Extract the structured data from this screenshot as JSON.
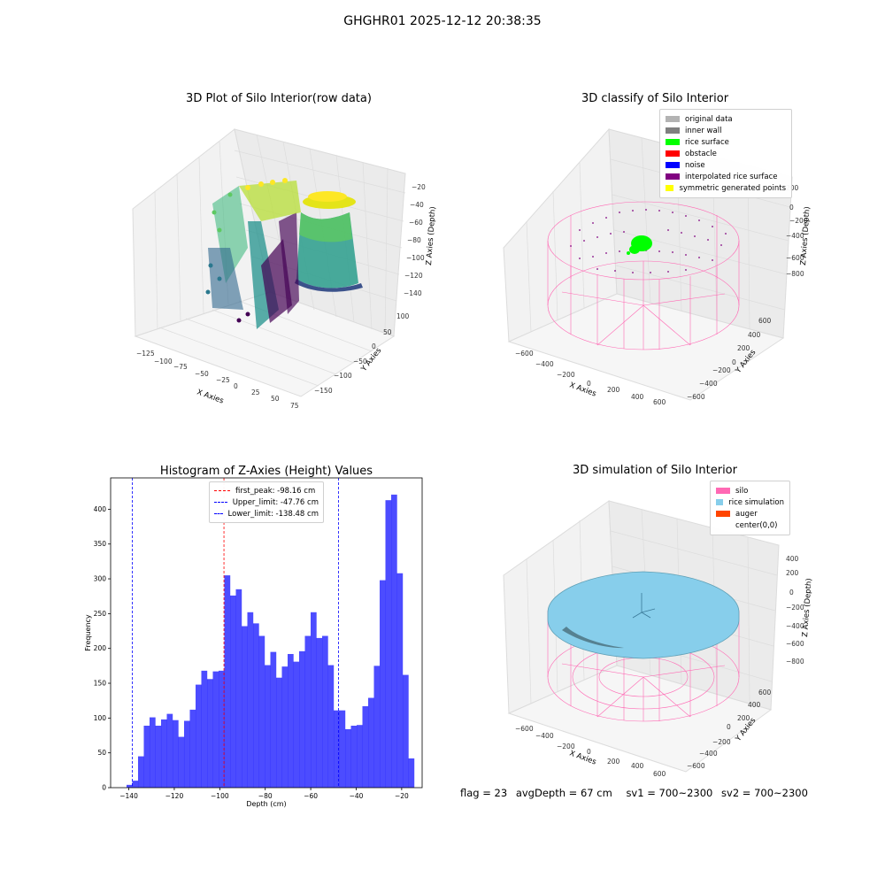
{
  "suptitle": "GHGHR01 2025-12-12 20:38:35",
  "panels": {
    "raw": {
      "title": "3D Plot of Silo Interior(row data)",
      "xlabel": "X Axies",
      "ylabel": "Y Axies",
      "zlabel": "Z Axies (Depth)",
      "xticks": [
        "−125",
        "−100",
        "−75",
        "−50",
        "−25",
        "0",
        "25",
        "50",
        "75"
      ],
      "yticks": [
        "100",
        "50",
        "0",
        "−50",
        "−100",
        "−150"
      ],
      "zticks": [
        "−20",
        "−40",
        "−60",
        "−80",
        "−100",
        "−120",
        "−140"
      ]
    },
    "classify": {
      "title": "3D classify of Silo Interior",
      "xlabel": "X Axies",
      "ylabel": "Y Axies",
      "zlabel": "Z Axies (Depth)",
      "xticks": [
        "−600",
        "−400",
        "−200",
        "0",
        "200",
        "400",
        "600"
      ],
      "yticks": [
        "600",
        "400",
        "200",
        "0",
        "−200",
        "−400",
        "−600"
      ],
      "zticks": [
        "200",
        "0",
        "−200",
        "−400",
        "−600",
        "−800"
      ],
      "legend": [
        {
          "label": "original data",
          "color": "#b3b3b3"
        },
        {
          "label": "inner wall",
          "color": "#808080"
        },
        {
          "label": "rice surface",
          "color": "#00ff00"
        },
        {
          "label": "obstacle",
          "color": "#ff0000"
        },
        {
          "label": "noise",
          "color": "#0000ff"
        },
        {
          "label": "interpolated rice surface",
          "color": "#800080"
        },
        {
          "label": "symmetric generated points",
          "color": "#ffff00"
        }
      ]
    },
    "simulation": {
      "title": "3D simulation of Silo Interior",
      "xlabel": "X Axies",
      "ylabel": "Y Axies",
      "zlabel": "Z Axies (Depth)",
      "xticks": [
        "−600",
        "−400",
        "−200",
        "0",
        "200",
        "400",
        "600"
      ],
      "yticks": [
        "600",
        "400",
        "200",
        "0",
        "−200",
        "−400",
        "−600"
      ],
      "zticks": [
        "400",
        "200",
        "0",
        "−200",
        "−400",
        "−600",
        "−800"
      ],
      "legend": [
        {
          "label": "silo",
          "color": "#ff69b4"
        },
        {
          "label": "rice simulation",
          "color": "#87ceeb"
        },
        {
          "label": "auger",
          "color": "#ff4500"
        },
        {
          "label": "center(0,0)",
          "color": "#ffffff"
        }
      ]
    }
  },
  "status": {
    "flag": "flag = 23",
    "avg": "avgDepth = 67 cm",
    "sv1": "sv1 = 700~2300",
    "sv2": "sv2 = 700~2300"
  },
  "chart_data": {
    "type": "bar",
    "title": "Histogram of Z-Axies (Height) Values",
    "xlabel": "Depth (cm)",
    "ylabel": "Frequency",
    "xlim": [
      -148,
      -11
    ],
    "ylim": [
      0,
      445
    ],
    "xticks": [
      -140,
      -120,
      -100,
      -80,
      -60,
      -40,
      -20
    ],
    "yticks": [
      0,
      50,
      100,
      150,
      200,
      250,
      300,
      350,
      400
    ],
    "bin_start": -141.0,
    "bin_width": 2.53,
    "counts": [
      4,
      10,
      45,
      89,
      101,
      89,
      98,
      106,
      97,
      73,
      96,
      112,
      148,
      168,
      156,
      167,
      168,
      305,
      276,
      285,
      232,
      252,
      236,
      218,
      176,
      195,
      158,
      174,
      192,
      181,
      196,
      218,
      252,
      215,
      218,
      176,
      111,
      111,
      84,
      89,
      90,
      117,
      129,
      175,
      298,
      413,
      421,
      308,
      162,
      42
    ],
    "bar_color": "#0000ff",
    "vlines": [
      {
        "label": "first_peak: -98.16 cm",
        "x": -98.16,
        "color": "#ff0000"
      },
      {
        "label": "Upper_limit: -47.76 cm",
        "x": -47.76,
        "color": "#0000ff"
      },
      {
        "label": "Lower_limit: -138.48 cm",
        "x": -138.48,
        "color": "#0000ff"
      }
    ]
  }
}
